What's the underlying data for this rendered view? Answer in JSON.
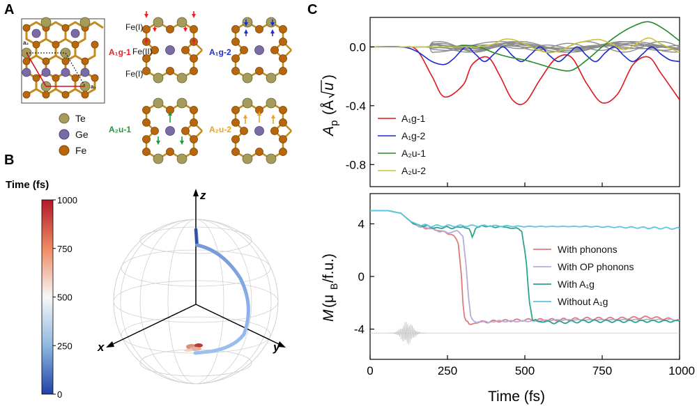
{
  "panels": {
    "a": "A",
    "b": "B",
    "c": "C"
  },
  "panel_a": {
    "lattice_vectors": {
      "a1": "a₁",
      "a2": "a₂"
    },
    "legend": [
      {
        "label": "Te",
        "color": "#a59b5a"
      },
      {
        "label": "Ge",
        "color": "#7a6aa6"
      },
      {
        "label": "Fe",
        "color": "#b8670d"
      }
    ],
    "site_labels": {
      "fe1_top": "Fe(I)",
      "fe2": "Fe(II)",
      "fe1_bottom": "Fe(I)"
    },
    "modes": [
      {
        "label": "A₁g-1",
        "color": "#e8202a"
      },
      {
        "label": "A₁g-2",
        "color": "#1b2fd1"
      },
      {
        "label": "A₂u-1",
        "color": "#1e9a3a"
      },
      {
        "label": "A₂u-2",
        "color": "#f0a020"
      }
    ]
  },
  "panel_b": {
    "colorbar": {
      "title": "Time (fs)",
      "ticks": [
        "1000",
        "750",
        "500",
        "250",
        "0"
      ],
      "range": [
        0,
        1000
      ],
      "colors": [
        "#b2182b",
        "#ef8a62",
        "#f7f7f7",
        "#67a9cf",
        "#2140a8"
      ]
    },
    "axes": {
      "x": "x",
      "y": "y",
      "z": "z"
    },
    "trajectory_color_start": "#3f64b8",
    "trajectory_color_end": "#c0392b"
  },
  "chart_data": [
    {
      "type": "line",
      "ylabel": "Ap (Å√u)",
      "ylabel_main": "A",
      "ylabel_sub": "p",
      "ylabel_unit": "(Å",
      "ylabel_sqrt": "u",
      "ylabel_close": ")",
      "xlim": [
        0,
        1000
      ],
      "ylim": [
        -0.95,
        0.2
      ],
      "yticks": [
        "0.0",
        "-0.4",
        "-0.8"
      ],
      "ytick_values": [
        0.0,
        -0.4,
        -0.8
      ],
      "legend": [
        "A₁g-1",
        "A₁g-2",
        "A₂u-1",
        "A₂u-2"
      ],
      "series": [
        {
          "name": "A₁g-1",
          "color": "#e0161b",
          "x": [
            0,
            100,
            150,
            200,
            240,
            300,
            330,
            380,
            420,
            460,
            500,
            550,
            600,
            650,
            700,
            750,
            800,
            850,
            900,
            940,
            1000
          ],
          "values": [
            0,
            0,
            -0.02,
            -0.2,
            -0.34,
            -0.26,
            -0.12,
            -0.07,
            -0.2,
            -0.36,
            -0.38,
            -0.22,
            -0.08,
            -0.07,
            -0.25,
            -0.38,
            -0.32,
            -0.12,
            -0.07,
            -0.18,
            -0.36
          ]
        },
        {
          "name": "A₁g-2",
          "color": "#1c2ccc",
          "x": [
            0,
            100,
            150,
            200,
            240,
            270,
            310,
            340,
            370,
            400,
            430,
            460,
            490,
            520,
            550,
            580,
            610,
            640,
            670,
            700,
            730,
            760,
            790,
            820,
            850,
            880,
            910,
            940,
            970,
            1000
          ],
          "values": [
            0,
            0,
            -0.03,
            -0.1,
            -0.12,
            -0.08,
            0.0,
            -0.05,
            -0.1,
            -0.05,
            0.0,
            -0.06,
            -0.1,
            -0.05,
            0.0,
            -0.06,
            -0.1,
            -0.05,
            0.0,
            -0.06,
            -0.1,
            -0.04,
            0.0,
            -0.06,
            -0.1,
            -0.05,
            0.0,
            -0.05,
            -0.09,
            -0.1
          ]
        },
        {
          "name": "A₂u-1",
          "color": "#238b2b",
          "x": [
            0,
            250,
            300,
            350,
            400,
            450,
            500,
            550,
            600,
            650,
            700,
            750,
            800,
            850,
            900,
            950,
            1000
          ],
          "values": [
            0,
            0,
            0.01,
            0.0,
            -0.04,
            -0.07,
            -0.09,
            -0.12,
            -0.15,
            -0.16,
            -0.09,
            0.0,
            0.08,
            0.14,
            0.17,
            0.12,
            0.04
          ]
        },
        {
          "name": "A₂u-2",
          "color": "#c9c23c",
          "x": [
            0,
            300,
            350,
            400,
            430,
            460,
            500,
            540,
            580,
            620,
            660,
            700,
            740,
            780,
            820,
            860,
            900,
            940,
            1000
          ],
          "values": [
            0,
            0,
            0.0,
            0.02,
            0.05,
            0.05,
            0.02,
            -0.02,
            -0.04,
            -0.02,
            0.02,
            0.04,
            0.05,
            0.02,
            -0.02,
            0.02,
            0.06,
            0.02,
            -0.04
          ]
        }
      ],
      "background_series_color": "#8c8c8c"
    },
    {
      "type": "line",
      "xlabel": "Time (fs)",
      "ylabel": "M (μB/f.u.)",
      "ylabel_main": "M",
      "ylabel_unit": "(μ",
      "ylabel_sub": "B",
      "ylabel_close": "/f.u.)",
      "xlim": [
        0,
        1000
      ],
      "ylim": [
        -6.3,
        6.3
      ],
      "xticks": [
        "0",
        "250",
        "500",
        "750",
        "1000"
      ],
      "xtick_values": [
        0,
        250,
        500,
        750,
        1000
      ],
      "yticks": [
        "4",
        "0",
        "-4"
      ],
      "ytick_values": [
        4,
        0,
        -4
      ],
      "legend": [
        "With phonons",
        "With OP phonons",
        "With A₁g",
        "Without A₁g"
      ],
      "series": [
        {
          "name": "With phonons",
          "color": "#e07a7a",
          "x": [
            0,
            60,
            100,
            140,
            180,
            220,
            250,
            270,
            285,
            295,
            300,
            305,
            310,
            320,
            340,
            400,
            500,
            600,
            700,
            800,
            900,
            1000
          ],
          "values": [
            5.0,
            5.0,
            4.8,
            4.0,
            3.7,
            3.5,
            3.3,
            3.2,
            2.5,
            0.0,
            -2.0,
            -3.0,
            -3.4,
            -3.6,
            -3.5,
            -3.4,
            -3.3,
            -3.3,
            -3.2,
            -3.2,
            -3.1,
            -3.3
          ]
        },
        {
          "name": "With OP phonons",
          "color": "#b9abd8",
          "x": [
            0,
            60,
            100,
            140,
            180,
            220,
            250,
            280,
            300,
            310,
            318,
            325,
            335,
            350,
            400,
            500,
            600,
            700,
            800,
            900,
            1000
          ],
          "values": [
            5.0,
            5.0,
            4.8,
            4.0,
            3.7,
            3.5,
            3.3,
            3.5,
            3.0,
            1.0,
            -1.5,
            -3.0,
            -3.4,
            -3.5,
            -3.4,
            -3.4,
            -3.3,
            -3.3,
            -3.3,
            -3.3,
            -3.3
          ]
        },
        {
          "name": "With A₁g",
          "color": "#2aa38c",
          "x": [
            0,
            60,
            100,
            140,
            180,
            220,
            260,
            300,
            320,
            330,
            340,
            360,
            400,
            460,
            490,
            505,
            515,
            525,
            540,
            600,
            700,
            800,
            900,
            1000
          ],
          "values": [
            5.0,
            5.0,
            4.8,
            4.0,
            3.8,
            3.7,
            3.7,
            3.8,
            3.6,
            3.0,
            3.6,
            3.8,
            3.8,
            3.7,
            3.5,
            1.0,
            -2.0,
            -3.3,
            -3.4,
            -3.5,
            -3.4,
            -3.4,
            -3.4,
            -3.4
          ]
        },
        {
          "name": "Without A₁g",
          "color": "#5ec6dc",
          "x": [
            0,
            60,
            100,
            130,
            160,
            200,
            300,
            400,
            500,
            600,
            700,
            800,
            900,
            1000
          ],
          "values": [
            5.0,
            5.0,
            4.8,
            4.2,
            3.9,
            3.85,
            3.85,
            3.85,
            3.8,
            3.8,
            3.8,
            3.75,
            3.7,
            3.65
          ]
        }
      ],
      "pulse": {
        "center_fs": 120,
        "baseline": -4.3,
        "color": "#c8c8c8"
      }
    }
  ]
}
